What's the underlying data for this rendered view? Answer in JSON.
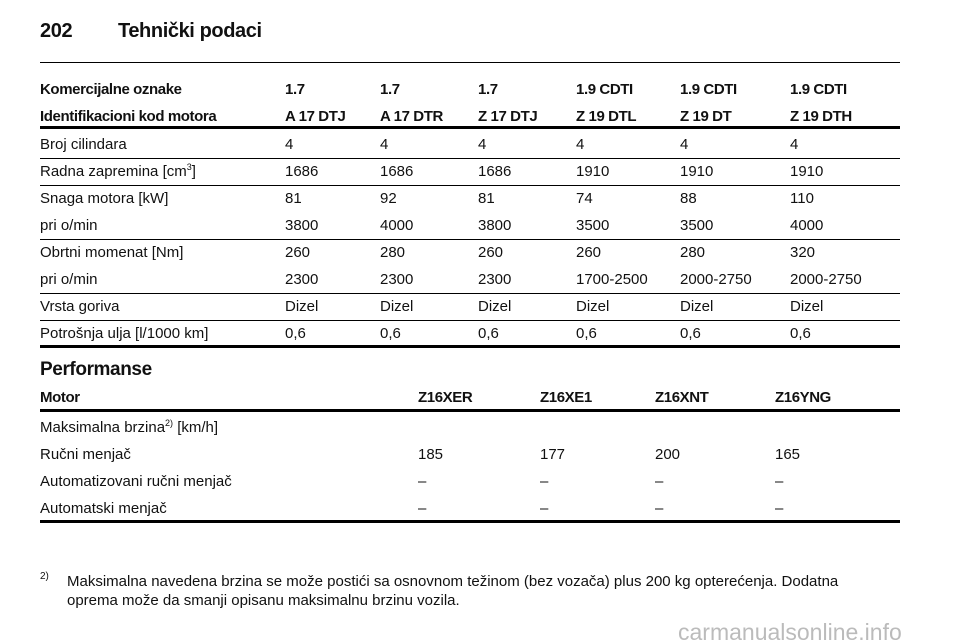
{
  "header": {
    "page_number": "202",
    "title": "Tehnički podaci"
  },
  "engine_table": {
    "header_rows": [
      [
        "Komercijalne oznake",
        "1.7",
        "1.7",
        "1.7",
        "1.9 CDTI",
        "1.9 CDTI",
        "1.9 CDTI"
      ],
      [
        "Identifikacioni kod motora",
        "A 17 DTJ",
        "A 17 DTR",
        "Z 17 DTJ",
        "Z 19 DTL",
        "Z 19 DT",
        "Z 19 DTH"
      ]
    ],
    "groups": [
      [
        {
          "label": "Broj cilindara",
          "cells": [
            "4",
            "4",
            "4",
            "4",
            "4",
            "4"
          ]
        }
      ],
      [
        {
          "label": "Radna zapremina [cm",
          "label_sup": "3",
          "label_after": "]",
          "cells": [
            "1686",
            "1686",
            "1686",
            "1910",
            "1910",
            "1910"
          ]
        }
      ],
      [
        {
          "label": "Snaga motora [kW]",
          "cells": [
            "81",
            "92",
            "81",
            "74",
            "88",
            "110"
          ]
        },
        {
          "label": "pri o/min",
          "cells": [
            "3800",
            "4000",
            "3800",
            "3500",
            "3500",
            "4000"
          ]
        }
      ],
      [
        {
          "label": "Obrtni momenat [Nm]",
          "cells": [
            "260",
            "280",
            "260",
            "260",
            "280",
            "320"
          ]
        },
        {
          "label": "pri o/min",
          "cells": [
            "2300",
            "2300",
            "2300",
            "1700-2500",
            "2000-2750",
            "2000-2750"
          ]
        }
      ],
      [
        {
          "label": "Vrsta goriva",
          "cells": [
            "Dizel",
            "Dizel",
            "Dizel",
            "Dizel",
            "Dizel",
            "Dizel"
          ]
        }
      ],
      [
        {
          "label": "Potrošnja ulja [l/1000 km]",
          "cells": [
            "0,6",
            "0,6",
            "0,6",
            "0,6",
            "0,6",
            "0,6"
          ]
        }
      ]
    ]
  },
  "performance": {
    "title": "Performanse",
    "header": [
      "Motor",
      "Z16XER",
      "Z16XE1",
      "Z16XNT",
      "Z16YNG"
    ],
    "rows": [
      {
        "label": "Maksimalna brzina",
        "label_sup": "2)",
        "label_after": " [km/h]"
      },
      {
        "label": "Ručni menjač",
        "cells": [
          "185",
          "177",
          "200",
          "165"
        ]
      },
      {
        "label": "Automatizovani ručni menjač",
        "cells": [
          "–",
          "–",
          "–",
          "–"
        ]
      },
      {
        "label": "Automatski menjač",
        "cells": [
          "–",
          "–",
          "–",
          "–"
        ]
      }
    ]
  },
  "footnote": {
    "marker": "2)",
    "lines": [
      "Maksimalna navedena brzina se može postići sa osnovnom težinom (bez vozača) plus 200 kg opterećenja. Dodatna",
      "oprema može da smanji opisanu maksimalnu brzinu vozila."
    ]
  },
  "watermark": "carmanualsonline.info"
}
